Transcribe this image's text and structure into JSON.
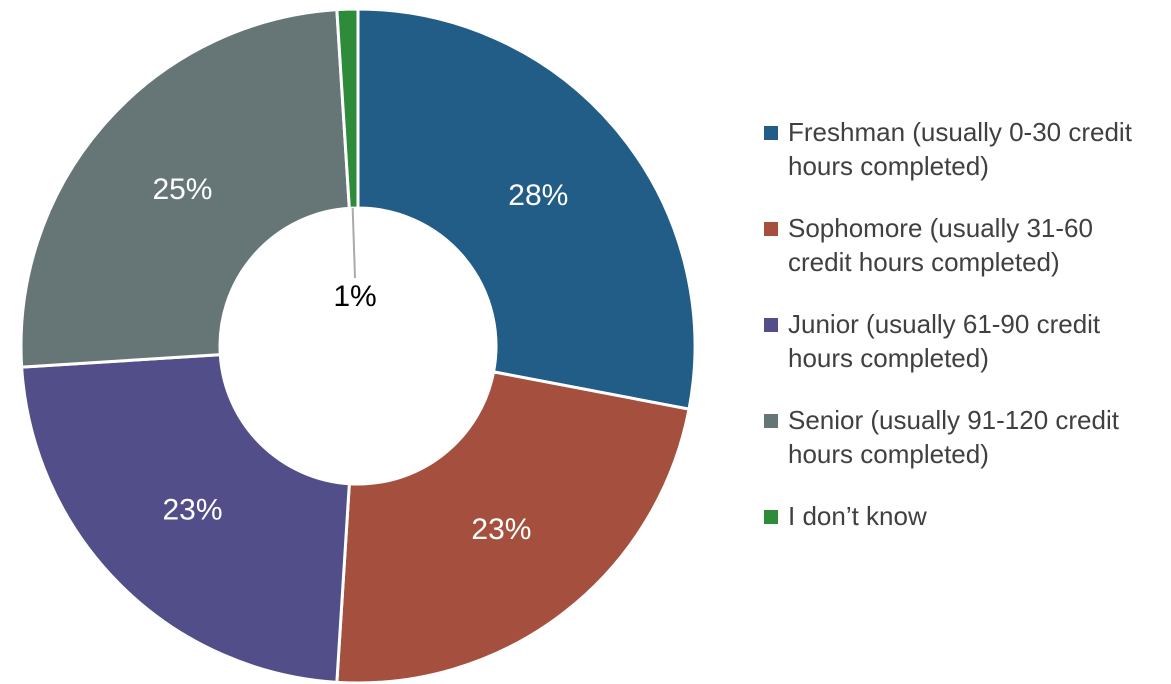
{
  "chart_data": {
    "type": "donut",
    "categories": [
      "Freshman (usually 0-30 credit hours completed)",
      "Sophomore (usually 31-60 credit hours completed)",
      "Junior (usually 61-90 credit hours completed)",
      "Senior (usually 91-120 credit hours completed)",
      "I don’t know"
    ],
    "values": [
      28,
      23,
      23,
      25,
      1
    ],
    "value_labels": [
      "28%",
      "23%",
      "23%",
      "25%",
      "1%"
    ],
    "colors": [
      "#215d87",
      "#a5503f",
      "#524e8a",
      "#667676",
      "#2e8b3a"
    ],
    "legend": "right"
  }
}
